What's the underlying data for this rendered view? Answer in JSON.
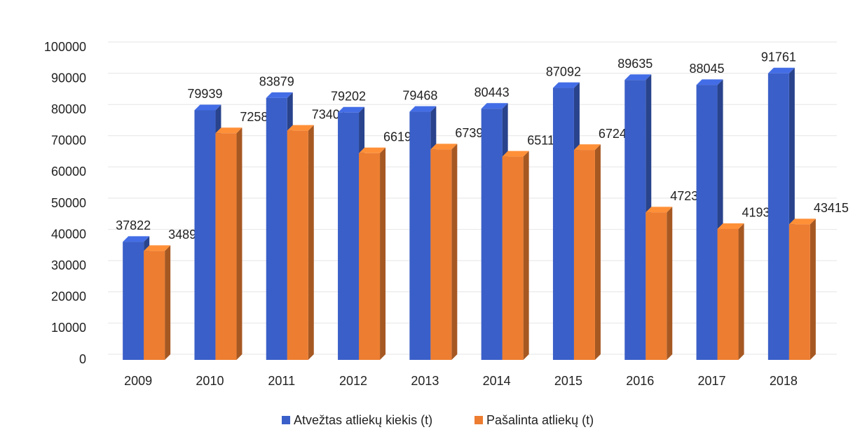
{
  "chart_data": {
    "type": "bar3d",
    "categories": [
      "2009",
      "2010",
      "2011",
      "2012",
      "2013",
      "2014",
      "2015",
      "2016",
      "2017",
      "2018"
    ],
    "series": [
      {
        "name": "Atvežtas atliekų kiekis (t)",
        "color": "#3a5fc8",
        "values": [
          37822,
          79939,
          83879,
          79202,
          79468,
          80443,
          87092,
          89635,
          88045,
          91761
        ]
      },
      {
        "name": "Pašalinta atliekų (t)",
        "color": "#ed7d31",
        "values": [
          34892,
          72585,
          73401,
          66194,
          67398,
          65110,
          67245,
          47232,
          41934,
          43415
        ]
      }
    ],
    "ylim": [
      0,
      100000
    ],
    "yticks": [
      0,
      10000,
      20000,
      30000,
      40000,
      50000,
      60000,
      70000,
      80000,
      90000,
      100000
    ],
    "grid": true,
    "legend": "bottom"
  }
}
